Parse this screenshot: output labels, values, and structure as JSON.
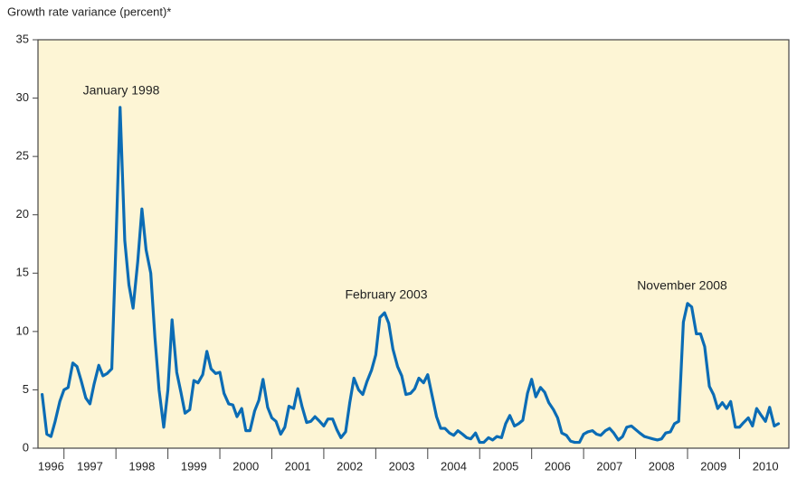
{
  "chart_data": {
    "type": "line",
    "title": "Growth rate variance (percent)*",
    "annotations": [
      "January 1998",
      "February 2003",
      "November 2008"
    ],
    "xlim": [
      1996.5,
      2010.95
    ],
    "ylim": [
      0,
      35
    ],
    "yticks": [
      0,
      5,
      10,
      15,
      20,
      25,
      30,
      35
    ],
    "xticks": [
      {
        "value": 1996.75,
        "label": "1996"
      },
      {
        "value": 1997.5,
        "label": "1997"
      },
      {
        "value": 1998.5,
        "label": "1998"
      },
      {
        "value": 1999.5,
        "label": "1999"
      },
      {
        "value": 2000.5,
        "label": "2000"
      },
      {
        "value": 2001.5,
        "label": "2001"
      },
      {
        "value": 2002.5,
        "label": "2002"
      },
      {
        "value": 2003.5,
        "label": "2003"
      },
      {
        "value": 2004.5,
        "label": "2004"
      },
      {
        "value": 2005.5,
        "label": "2005"
      },
      {
        "value": 2006.5,
        "label": "2006"
      },
      {
        "value": 2007.5,
        "label": "2007"
      },
      {
        "value": 2008.5,
        "label": "2008"
      },
      {
        "value": 2009.5,
        "label": "2009"
      },
      {
        "value": 2010.5,
        "label": "2010"
      }
    ],
    "xminorticks": [
      1997,
      1998,
      1999,
      2000,
      2001,
      2002,
      2003,
      2004,
      2005,
      2006,
      2007,
      2008,
      2009,
      2010
    ],
    "grid": false,
    "background": "#fdf5d5",
    "x": [
      1996.58,
      1996.67,
      1996.75,
      1996.83,
      1996.92,
      1997,
      1997.08,
      1997.17,
      1997.25,
      1997.33,
      1997.42,
      1997.5,
      1997.58,
      1997.67,
      1997.75,
      1997.83,
      1997.92,
      1998,
      1998.08,
      1998.17,
      1998.25,
      1998.33,
      1998.42,
      1998.5,
      1998.58,
      1998.67,
      1998.75,
      1998.83,
      1998.92,
      1999,
      1999.08,
      1999.17,
      1999.25,
      1999.33,
      1999.42,
      1999.5,
      1999.58,
      1999.67,
      1999.75,
      1999.83,
      1999.92,
      2000,
      2000.08,
      2000.17,
      2000.25,
      2000.33,
      2000.42,
      2000.5,
      2000.58,
      2000.67,
      2000.75,
      2000.83,
      2000.92,
      2001,
      2001.08,
      2001.17,
      2001.25,
      2001.33,
      2001.42,
      2001.5,
      2001.58,
      2001.67,
      2001.75,
      2001.83,
      2001.92,
      2002,
      2002.08,
      2002.17,
      2002.25,
      2002.33,
      2002.42,
      2002.5,
      2002.58,
      2002.67,
      2002.75,
      2002.83,
      2002.92,
      2003,
      2003.08,
      2003.17,
      2003.25,
      2003.33,
      2003.42,
      2003.5,
      2003.58,
      2003.67,
      2003.75,
      2003.83,
      2003.92,
      2004,
      2004.08,
      2004.17,
      2004.25,
      2004.33,
      2004.42,
      2004.5,
      2004.58,
      2004.67,
      2004.75,
      2004.83,
      2004.92,
      2005,
      2005.08,
      2005.17,
      2005.25,
      2005.33,
      2005.42,
      2005.5,
      2005.58,
      2005.67,
      2005.75,
      2005.83,
      2005.92,
      2006,
      2006.08,
      2006.17,
      2006.25,
      2006.33,
      2006.42,
      2006.5,
      2006.58,
      2006.67,
      2006.75,
      2006.83,
      2006.92,
      2007,
      2007.08,
      2007.17,
      2007.25,
      2007.33,
      2007.42,
      2007.5,
      2007.58,
      2007.67,
      2007.75,
      2007.83,
      2007.92,
      2008,
      2008.08,
      2008.17,
      2008.25,
      2008.33,
      2008.42,
      2008.5,
      2008.58,
      2008.67,
      2008.75,
      2008.83,
      2008.92,
      2009,
      2009.08,
      2009.17,
      2009.25,
      2009.33,
      2009.42,
      2009.5,
      2009.58,
      2009.67,
      2009.75,
      2009.83,
      2009.92,
      2010,
      2010.08,
      2010.17,
      2010.25,
      2010.33,
      2010.42,
      2010.5,
      2010.58,
      2010.67,
      2010.75
    ],
    "series": [
      {
        "color": "#0b6cb5",
        "values": [
          4.6,
          1.2,
          1.0,
          2.3,
          4.0,
          5.0,
          5.2,
          7.3,
          7.0,
          5.8,
          4.3,
          3.8,
          5.5,
          7.1,
          6.2,
          6.4,
          6.8,
          17.5,
          29.2,
          17.8,
          14.0,
          12.0,
          16.0,
          20.5,
          17.0,
          15.0,
          9.5,
          5.0,
          1.8,
          5.0,
          11.0,
          6.5,
          4.8,
          3.0,
          3.3,
          5.8,
          5.6,
          6.3,
          8.3,
          6.8,
          6.4,
          6.5,
          4.7,
          3.8,
          3.7,
          2.7,
          3.4,
          1.5,
          1.5,
          3.2,
          4.1,
          5.9,
          3.5,
          2.6,
          2.3,
          1.2,
          1.8,
          3.6,
          3.4,
          5.1,
          3.6,
          2.2,
          2.3,
          2.7,
          2.3,
          1.9,
          2.5,
          2.5,
          1.6,
          0.9,
          1.4,
          3.9,
          6.0,
          5.0,
          4.6,
          5.7,
          6.7,
          8.0,
          11.2,
          11.6,
          10.7,
          8.5,
          7.0,
          6.2,
          4.6,
          4.7,
          5.1,
          6.0,
          5.6,
          6.3,
          4.6,
          2.7,
          1.7,
          1.7,
          1.3,
          1.1,
          1.5,
          1.2,
          0.9,
          0.8,
          1.3,
          0.5,
          0.5,
          0.9,
          0.7,
          1.0,
          0.9,
          2.1,
          2.8,
          1.9,
          2.1,
          2.4,
          4.7,
          5.9,
          4.4,
          5.2,
          4.8,
          3.9,
          3.3,
          2.6,
          1.3,
          1.1,
          0.6,
          0.5,
          0.5,
          1.2,
          1.4,
          1.5,
          1.2,
          1.1,
          1.5,
          1.7,
          1.3,
          0.7,
          1.0,
          1.8,
          1.9,
          1.6,
          1.3,
          1.0,
          0.9,
          0.8,
          0.7,
          0.8,
          1.3,
          1.4,
          2.1,
          2.3,
          10.8,
          12.4,
          12.1,
          9.8,
          9.8,
          8.7,
          5.3,
          4.6,
          3.4,
          3.9,
          3.4,
          4.0,
          1.8,
          1.8,
          2.2,
          2.6,
          1.9,
          3.4,
          2.8,
          2.3,
          3.5,
          1.9,
          2.1
        ]
      }
    ]
  }
}
